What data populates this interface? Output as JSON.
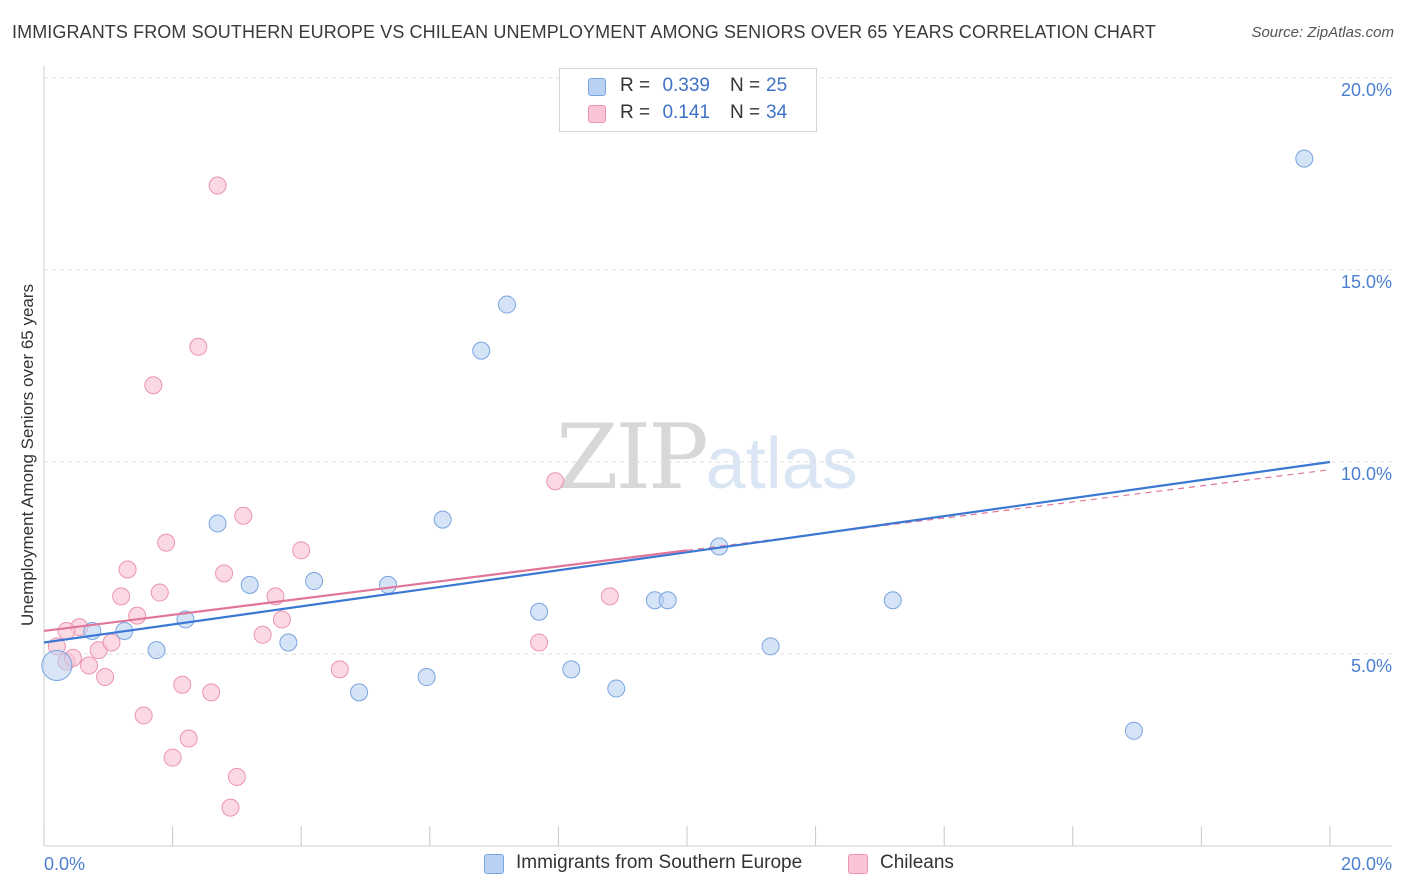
{
  "header": {
    "title": "IMMIGRANTS FROM SOUTHERN EUROPE VS CHILEAN UNEMPLOYMENT AMONG SENIORS OVER 65 YEARS CORRELATION CHART",
    "source": "Source: ZipAtlas.com"
  },
  "watermark": {
    "zip": "ZIP",
    "atlas": "atlas"
  },
  "legend": {
    "series1": {
      "r_label": "R =",
      "r_value": "0.339",
      "n_label": "N =",
      "n_value": "25"
    },
    "series2": {
      "r_label": "R =",
      "r_value": "0.141",
      "n_label": "N =",
      "n_value": "34"
    }
  },
  "bottom_legend": {
    "series1": "Immigrants from Southern Europe",
    "series2": "Chileans"
  },
  "colors": {
    "series1_fill": "#b9d1f2",
    "series1_stroke": "#7aa4e0",
    "series1_line": "#3a78d4",
    "series2_fill": "#f9c5d4",
    "series2_stroke": "#ec94b0",
    "series2_line": "#e0759a",
    "grid": "#dedede",
    "axis_text": "#4a7fd0"
  },
  "chart_data": {
    "type": "scatter",
    "title": "IMMIGRANTS FROM SOUTHERN EUROPE VS CHILEAN UNEMPLOYMENT AMONG SENIORS OVER 65 YEARS CORRELATION CHART",
    "xlabel": "",
    "ylabel": "Unemployment Among Seniors over 65 years",
    "xlim": [
      0,
      20
    ],
    "ylim": [
      0,
      20
    ],
    "x_tick_labels": [
      {
        "value": 0,
        "label": "0.0%"
      },
      {
        "value": 20,
        "label": "20.0%"
      }
    ],
    "y_tick_labels": [
      {
        "value": 5,
        "label": "5.0%"
      },
      {
        "value": 10,
        "label": "10.0%"
      },
      {
        "value": 15,
        "label": "15.0%"
      },
      {
        "value": 20,
        "label": "20.0%"
      }
    ],
    "grid": true,
    "legend_position": "top-center",
    "series": [
      {
        "name": "Immigrants from Southern Europe",
        "R": 0.339,
        "N": 25,
        "points": [
          {
            "x": 0.2,
            "y": 4.7
          },
          {
            "x": 0.75,
            "y": 5.6
          },
          {
            "x": 1.25,
            "y": 5.6
          },
          {
            "x": 1.75,
            "y": 5.1
          },
          {
            "x": 2.2,
            "y": 5.9
          },
          {
            "x": 2.7,
            "y": 8.4
          },
          {
            "x": 3.2,
            "y": 6.8
          },
          {
            "x": 3.8,
            "y": 5.3
          },
          {
            "x": 4.2,
            "y": 6.9
          },
          {
            "x": 4.9,
            "y": 4.0
          },
          {
            "x": 5.35,
            "y": 6.8
          },
          {
            "x": 5.95,
            "y": 4.4
          },
          {
            "x": 6.2,
            "y": 8.5
          },
          {
            "x": 6.8,
            "y": 12.9
          },
          {
            "x": 7.2,
            "y": 14.1
          },
          {
            "x": 7.7,
            "y": 6.1
          },
          {
            "x": 8.2,
            "y": 4.6
          },
          {
            "x": 8.9,
            "y": 4.1
          },
          {
            "x": 9.5,
            "y": 6.4
          },
          {
            "x": 9.7,
            "y": 6.4
          },
          {
            "x": 10.5,
            "y": 7.8
          },
          {
            "x": 11.3,
            "y": 5.2
          },
          {
            "x": 13.2,
            "y": 6.4
          },
          {
            "x": 16.95,
            "y": 3.0
          },
          {
            "x": 19.6,
            "y": 17.9
          }
        ],
        "trend": {
          "x0": 0,
          "y0": 5.3,
          "x1": 20,
          "y1": 10.0
        }
      },
      {
        "name": "Chileans",
        "R": 0.141,
        "N": 34,
        "points": [
          {
            "x": 0.2,
            "y": 5.2
          },
          {
            "x": 0.35,
            "y": 4.8
          },
          {
            "x": 0.45,
            "y": 4.9
          },
          {
            "x": 0.55,
            "y": 5.7
          },
          {
            "x": 0.7,
            "y": 4.7
          },
          {
            "x": 0.85,
            "y": 5.1
          },
          {
            "x": 0.95,
            "y": 4.4
          },
          {
            "x": 1.05,
            "y": 5.3
          },
          {
            "x": 1.2,
            "y": 6.5
          },
          {
            "x": 1.3,
            "y": 7.2
          },
          {
            "x": 1.45,
            "y": 6.0
          },
          {
            "x": 1.55,
            "y": 3.4
          },
          {
            "x": 1.7,
            "y": 12.0
          },
          {
            "x": 1.8,
            "y": 6.6
          },
          {
            "x": 1.9,
            "y": 7.9
          },
          {
            "x": 2.0,
            "y": 2.3
          },
          {
            "x": 2.15,
            "y": 4.2
          },
          {
            "x": 2.25,
            "y": 2.8
          },
          {
            "x": 2.4,
            "y": 13.0
          },
          {
            "x": 2.6,
            "y": 4.0
          },
          {
            "x": 2.7,
            "y": 17.2
          },
          {
            "x": 2.8,
            "y": 7.1
          },
          {
            "x": 2.9,
            "y": 1.0
          },
          {
            "x": 3.0,
            "y": 1.8
          },
          {
            "x": 3.1,
            "y": 8.6
          },
          {
            "x": 3.4,
            "y": 5.5
          },
          {
            "x": 3.6,
            "y": 6.5
          },
          {
            "x": 3.7,
            "y": 5.9
          },
          {
            "x": 4.0,
            "y": 7.7
          },
          {
            "x": 4.6,
            "y": 4.6
          },
          {
            "x": 7.7,
            "y": 5.3
          },
          {
            "x": 7.95,
            "y": 9.5
          },
          {
            "x": 8.8,
            "y": 6.5
          },
          {
            "x": 0.35,
            "y": 5.6
          }
        ],
        "trend": {
          "x0": 0,
          "y0": 5.6,
          "x1": 10,
          "y1": 7.7
        },
        "trend_extension": {
          "x0": 10,
          "y0": 7.7,
          "x1": 20,
          "y1": 9.8
        }
      }
    ]
  }
}
